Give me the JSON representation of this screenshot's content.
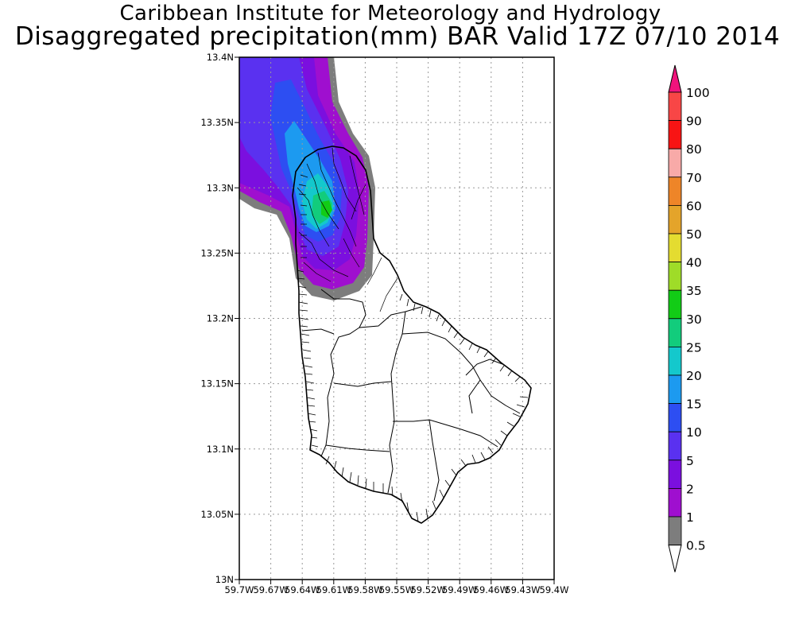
{
  "title_line1": "Caribbean Institute for Meteorology and Hydrology",
  "title_line2": "Disaggregated precipitation(mm) BAR Valid 17Z 07/10 2014",
  "map": {
    "lon_labels": [
      "59.7W",
      "59.67W",
      "59.64W",
      "59.61W",
      "59.58W",
      "59.55W",
      "59.52W",
      "59.49W",
      "59.46W",
      "59.43W",
      "59.4W"
    ],
    "lat_labels": [
      "13.4N",
      "13.35N",
      "13.3N",
      "13.25N",
      "13.2N",
      "13.15N",
      "13.1N",
      "13.05N",
      "13N"
    ]
  },
  "legend": {
    "levels": [
      {
        "label": "0.5",
        "color": "#ffffff"
      },
      {
        "label": "1",
        "color": "#7d7d7d"
      },
      {
        "label": "2",
        "color": "#9f0fcf"
      },
      {
        "label": "5",
        "color": "#7b0fdf"
      },
      {
        "label": "10",
        "color": "#5a31f0"
      },
      {
        "label": "15",
        "color": "#2d4ef2"
      },
      {
        "label": "20",
        "color": "#1c9af0"
      },
      {
        "label": "25",
        "color": "#14c8cc"
      },
      {
        "label": "30",
        "color": "#12cc7c"
      },
      {
        "label": "35",
        "color": "#12cc16"
      },
      {
        "label": "40",
        "color": "#9fdc28"
      },
      {
        "label": "50",
        "color": "#e4dc30"
      },
      {
        "label": "60",
        "color": "#e4a42a"
      },
      {
        "label": "70",
        "color": "#ee8528"
      },
      {
        "label": "80",
        "color": "#f8aaa8"
      },
      {
        "label": "90",
        "color": "#f81414"
      },
      {
        "label": "100",
        "color": "#f84646"
      }
    ],
    "top_arrow_color": "#f0147c"
  }
}
